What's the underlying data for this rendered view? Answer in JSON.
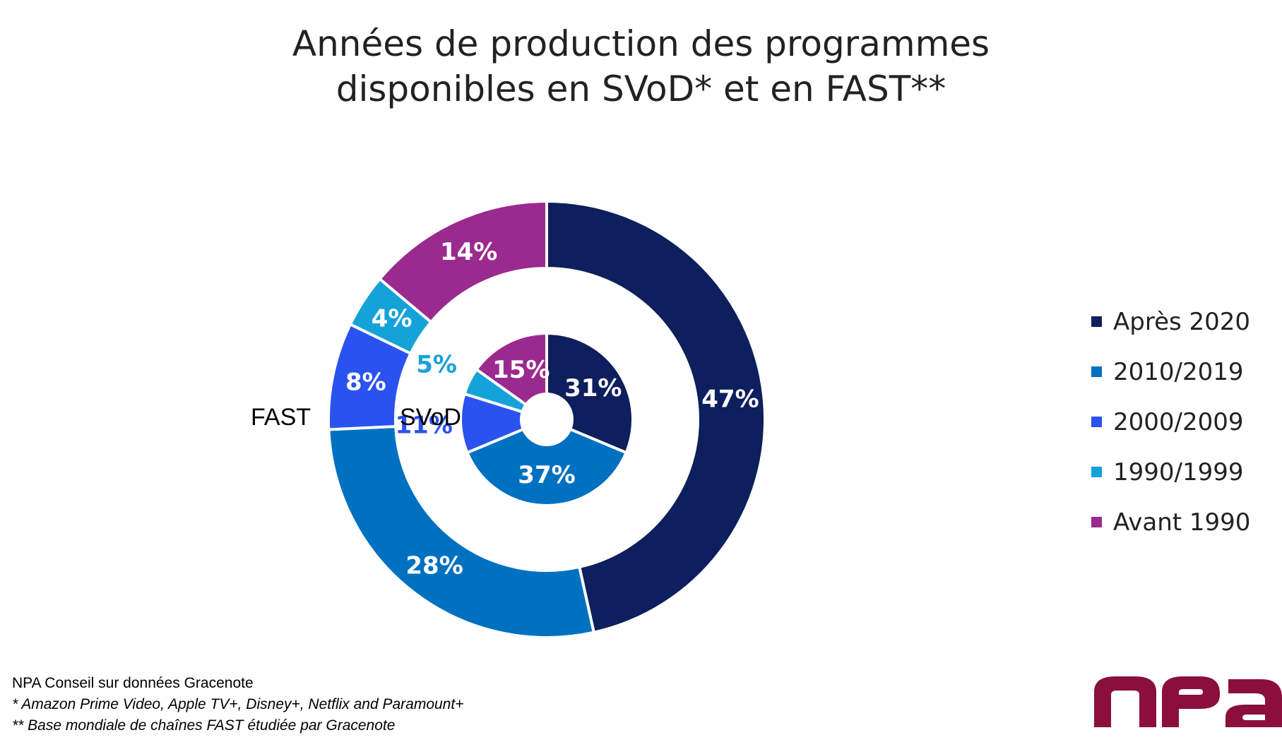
{
  "title_lines": [
    "Années de production des programmes",
    "disponibles en SVoD* et en FAST**"
  ],
  "ring_labels": {
    "outer": "FAST",
    "inner": "SVoD"
  },
  "colors": {
    "Après 2020": "#0d1f5c",
    "2010/2019": "#0071c1",
    "2000/2009": "#2a52ee",
    "1990/1999": "#15a2d9",
    "Avant 1990": "#9a2a8e",
    "logo": "#8a0f3d"
  },
  "chart_data": {
    "type": "donut",
    "title": "Années de production des programmes disponibles en SVoD* et en FAST**",
    "categories": [
      "Après 2020",
      "2010/2019",
      "2000/2009",
      "1990/1999",
      "Avant 1990"
    ],
    "series": [
      {
        "name": "FAST",
        "ring": "outer",
        "values": [
          47,
          28,
          8,
          4,
          14
        ],
        "labels": [
          "47%",
          "28%",
          "8%",
          "4%",
          "14%"
        ]
      },
      {
        "name": "SVoD",
        "ring": "inner",
        "values": [
          31,
          37,
          11,
          5,
          15
        ],
        "labels": [
          "31%",
          "37%",
          "11%",
          "5%",
          "15%"
        ]
      }
    ],
    "legend": {
      "position": "right",
      "items": [
        "Après 2020",
        "2010/2019",
        "2000/2009",
        "1990/1999",
        "Avant 1990"
      ]
    }
  },
  "footer": {
    "source": "NPA Conseil sur données Gracenote",
    "note1": "* Amazon Prime Video, Apple TV+, Disney+, Netflix and Paramount+",
    "note2": "** Base mondiale de chaînes FAST étudiée par Gracenote"
  },
  "logo": {
    "text": "npa"
  }
}
